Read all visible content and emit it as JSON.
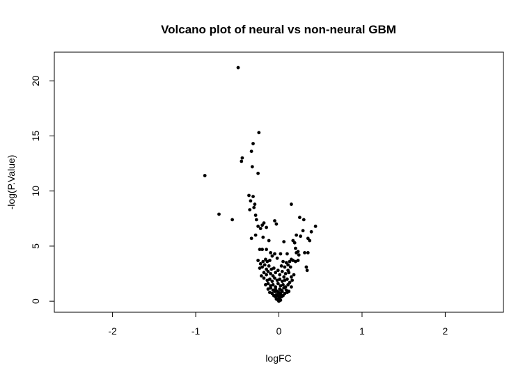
{
  "chart_data": {
    "type": "scatter",
    "title": "Volcano plot of neural vs non-neural GBM",
    "xlabel": "logFC",
    "ylabel": "-log(P.Value)",
    "xlim": [
      -2.7,
      2.7
    ],
    "ylim": [
      -1.0,
      22.6
    ],
    "xticks": [
      -2,
      -1,
      0,
      1,
      2
    ],
    "yticks": [
      0,
      5,
      10,
      15,
      20
    ],
    "grid": false,
    "legend": "none",
    "marker_color": "#000000",
    "points": [
      [
        -0.49,
        21.2
      ],
      [
        -0.24,
        15.3
      ],
      [
        -0.31,
        14.3
      ],
      [
        -0.33,
        13.6
      ],
      [
        -0.44,
        13.0
      ],
      [
        -0.45,
        12.7
      ],
      [
        -0.32,
        12.2
      ],
      [
        -0.25,
        11.6
      ],
      [
        -0.89,
        11.4
      ],
      [
        -0.36,
        9.6
      ],
      [
        -0.31,
        9.5
      ],
      [
        -0.34,
        9.1
      ],
      [
        -0.29,
        8.8
      ],
      [
        -0.3,
        8.5
      ],
      [
        -0.35,
        8.3
      ],
      [
        0.15,
        8.8
      ],
      [
        -0.72,
        7.9
      ],
      [
        -0.56,
        7.4
      ],
      [
        -0.28,
        7.8
      ],
      [
        -0.27,
        7.4
      ],
      [
        -0.25,
        6.8
      ],
      [
        -0.22,
        6.6
      ],
      [
        -0.18,
        7.1
      ],
      [
        -0.15,
        6.7
      ],
      [
        -0.2,
        6.9
      ],
      [
        -0.05,
        7.3
      ],
      [
        -0.03,
        7.0
      ],
      [
        0.25,
        7.6
      ],
      [
        0.3,
        7.4
      ],
      [
        0.44,
        6.8
      ],
      [
        0.39,
        6.3
      ],
      [
        0.29,
        6.4
      ],
      [
        0.21,
        6.0
      ],
      [
        0.26,
        5.9
      ],
      [
        0.35,
        5.7
      ],
      [
        0.37,
        5.5
      ],
      [
        -0.33,
        5.7
      ],
      [
        -0.28,
        6.0
      ],
      [
        -0.19,
        5.8
      ],
      [
        -0.12,
        5.5
      ],
      [
        0.06,
        5.4
      ],
      [
        0.17,
        5.5
      ],
      [
        0.19,
        5.3
      ],
      [
        0.2,
        4.8
      ],
      [
        -0.23,
        4.7
      ],
      [
        -0.2,
        4.7
      ],
      [
        -0.15,
        4.7
      ],
      [
        -0.1,
        4.4
      ],
      [
        -0.08,
        4.1
      ],
      [
        -0.05,
        4.3
      ],
      [
        -0.02,
        3.9
      ],
      [
        0.02,
        4.3
      ],
      [
        0.1,
        4.3
      ],
      [
        0.21,
        4.4
      ],
      [
        0.24,
        4.2
      ],
      [
        0.31,
        4.4
      ],
      [
        0.35,
        4.4
      ],
      [
        0.23,
        4.5
      ],
      [
        -0.25,
        3.7
      ],
      [
        -0.22,
        3.4
      ],
      [
        -0.19,
        3.6
      ],
      [
        -0.16,
        3.8
      ],
      [
        -0.14,
        3.6
      ],
      [
        -0.11,
        3.7
      ],
      [
        0.05,
        3.6
      ],
      [
        0.09,
        3.5
      ],
      [
        0.13,
        3.6
      ],
      [
        0.15,
        3.8
      ],
      [
        0.17,
        3.7
      ],
      [
        0.2,
        3.6
      ],
      [
        0.23,
        3.7
      ],
      [
        -0.23,
        3.0
      ],
      [
        -0.2,
        3.1
      ],
      [
        -0.17,
        3.3
      ],
      [
        -0.12,
        3.2
      ],
      [
        -0.06,
        3.0
      ],
      [
        -0.01,
        2.8
      ],
      [
        0.03,
        3.2
      ],
      [
        0.07,
        3.1
      ],
      [
        0.11,
        3.3
      ],
      [
        0.14,
        3.1
      ],
      [
        0.33,
        3.1
      ],
      [
        0.34,
        2.8
      ],
      [
        -0.18,
        2.6
      ],
      [
        -0.15,
        2.4
      ],
      [
        -0.13,
        2.7
      ],
      [
        -0.1,
        2.5
      ],
      [
        -0.07,
        2.3
      ],
      [
        -0.04,
        2.6
      ],
      [
        0.01,
        2.4
      ],
      [
        0.04,
        2.7
      ],
      [
        0.08,
        2.5
      ],
      [
        0.12,
        2.6
      ],
      [
        0.15,
        2.2
      ],
      [
        -0.18,
        2.1
      ],
      [
        -0.14,
        1.9
      ],
      [
        -0.11,
        2.0
      ],
      [
        -0.08,
        1.8
      ],
      [
        -0.05,
        2.1
      ],
      [
        -0.02,
        1.9
      ],
      [
        0.01,
        2.0
      ],
      [
        0.04,
        1.8
      ],
      [
        0.07,
        1.9
      ],
      [
        0.1,
        2.0
      ],
      [
        0.13,
        1.7
      ],
      [
        0.16,
        1.9
      ],
      [
        -0.16,
        1.5
      ],
      [
        -0.13,
        1.6
      ],
      [
        -0.1,
        1.4
      ],
      [
        -0.07,
        1.5
      ],
      [
        -0.04,
        1.3
      ],
      [
        -0.01,
        1.6
      ],
      [
        0.02,
        1.4
      ],
      [
        0.05,
        1.5
      ],
      [
        0.08,
        1.3
      ],
      [
        0.11,
        1.5
      ],
      [
        0.15,
        1.3
      ],
      [
        -0.13,
        1.1
      ],
      [
        -0.1,
        1.2
      ],
      [
        -0.07,
        1.0
      ],
      [
        -0.04,
        1.1
      ],
      [
        -0.02,
        0.9
      ],
      [
        0.01,
        1.1
      ],
      [
        0.03,
        1.0
      ],
      [
        0.06,
        1.2
      ],
      [
        0.09,
        1.0
      ],
      [
        0.12,
        0.9
      ],
      [
        -0.11,
        0.8
      ],
      [
        -0.08,
        0.7
      ],
      [
        -0.05,
        0.9
      ],
      [
        -0.03,
        0.6
      ],
      [
        0.0,
        0.8
      ],
      [
        0.02,
        0.7
      ],
      [
        0.04,
        0.9
      ],
      [
        0.07,
        0.7
      ],
      [
        0.1,
        0.8
      ],
      [
        -0.06,
        0.5
      ],
      [
        -0.04,
        0.4
      ],
      [
        -0.02,
        0.5
      ],
      [
        0.0,
        0.3
      ],
      [
        0.01,
        0.5
      ],
      [
        0.03,
        0.4
      ],
      [
        0.05,
        0.5
      ],
      [
        -0.03,
        0.2
      ],
      [
        -0.01,
        0.1
      ],
      [
        0.01,
        0.2
      ],
      [
        0.02,
        0.1
      ],
      [
        0.0,
        0.0
      ],
      [
        -0.02,
        0.6
      ],
      [
        0.02,
        0.6
      ],
      [
        -0.15,
        2.9
      ],
      [
        0.11,
        2.8
      ],
      [
        -0.09,
        2.9
      ],
      [
        0.06,
        2.2
      ],
      [
        -0.21,
        2.3
      ],
      [
        0.18,
        2.4
      ]
    ]
  }
}
